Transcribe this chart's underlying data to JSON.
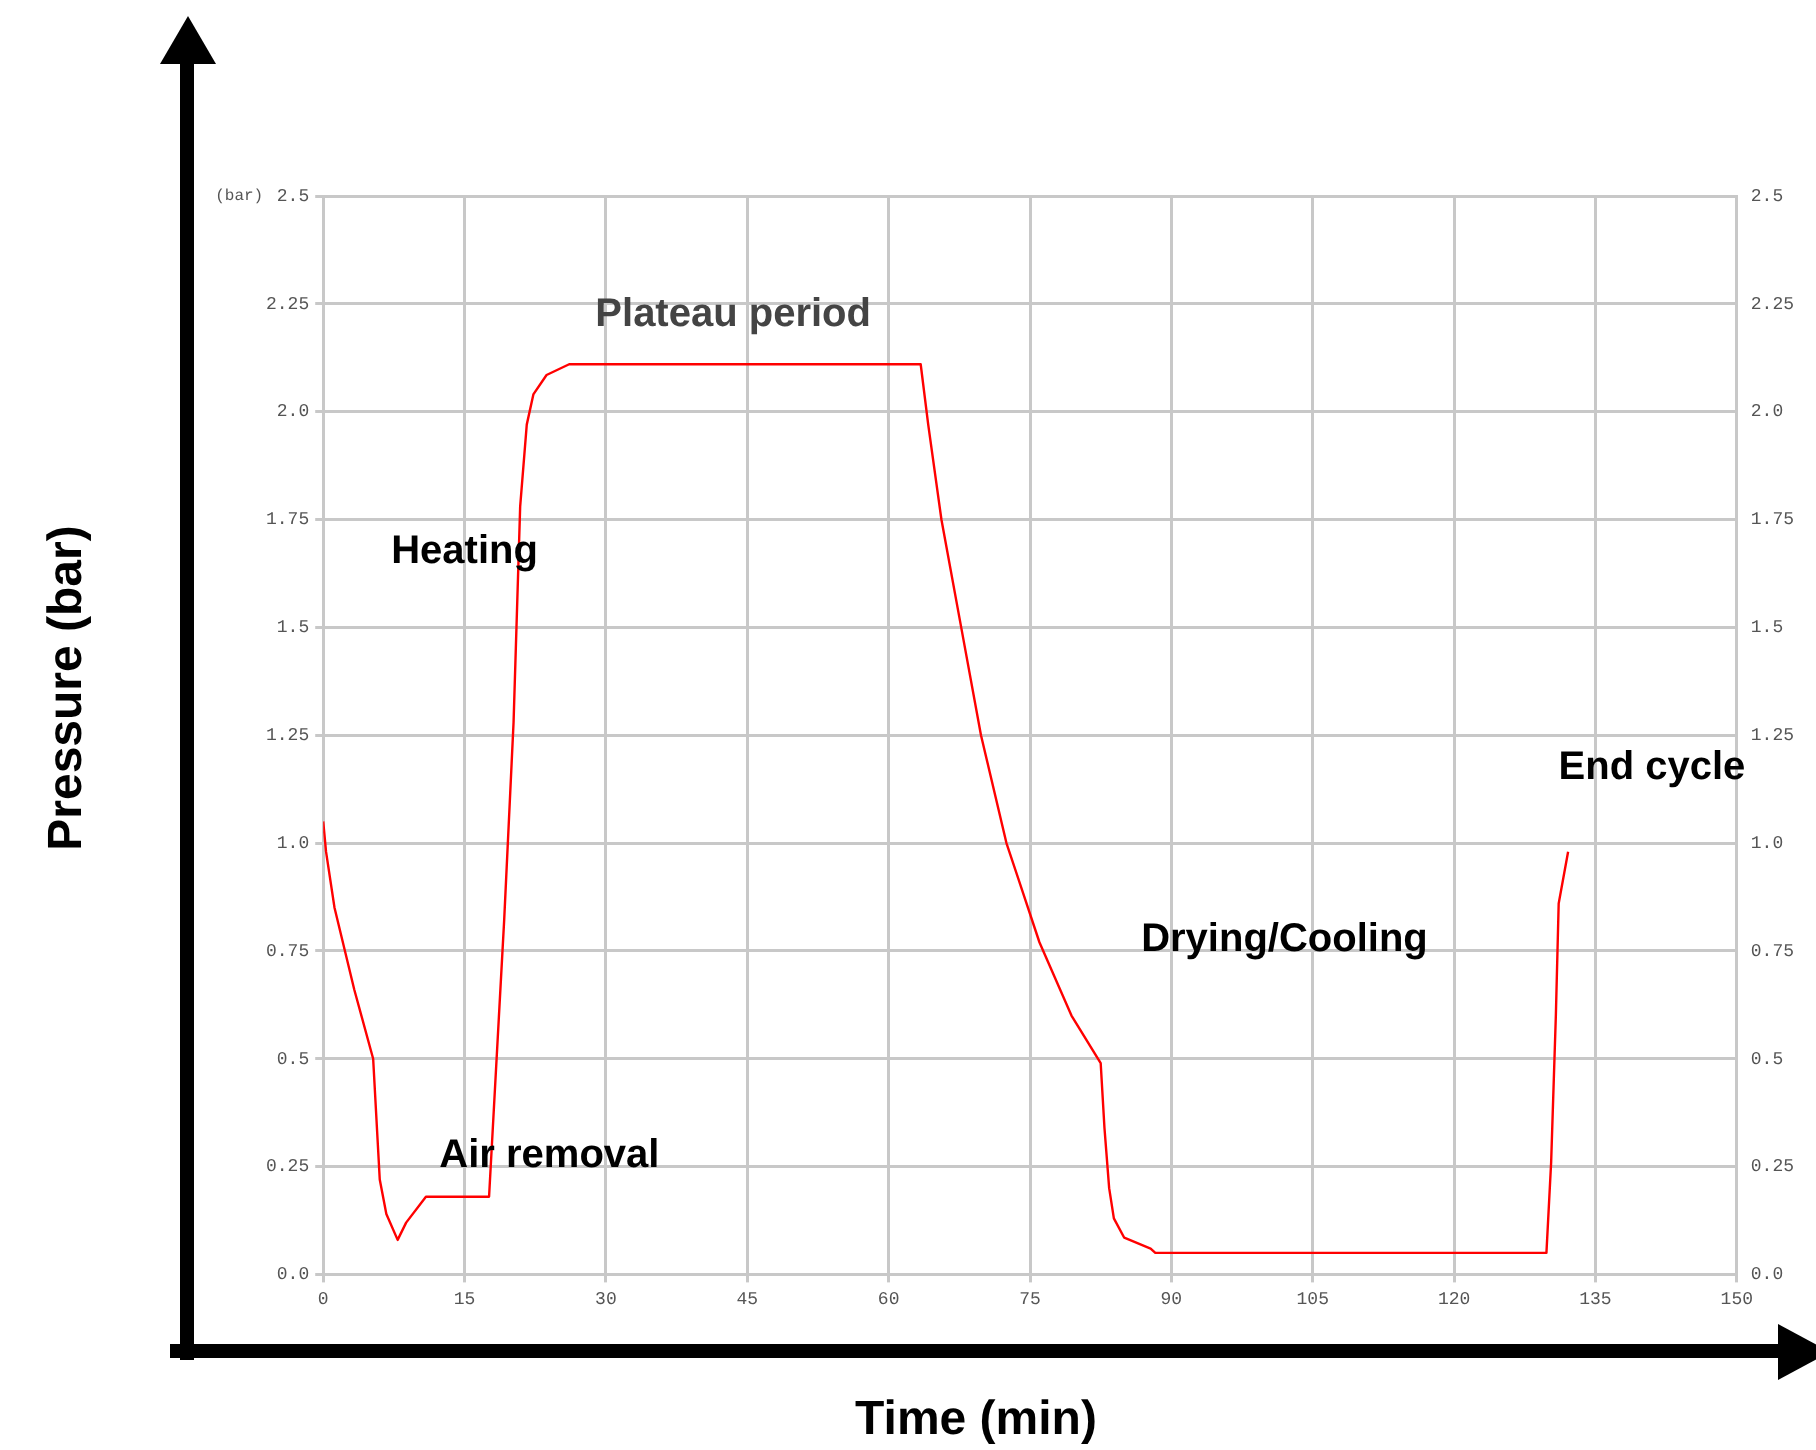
{
  "chart_data": {
    "type": "line",
    "xlabel": "Time (min)",
    "ylabel": "Pressure (bar)",
    "x": [
      0,
      0.3,
      1.2,
      3.3,
      5.3,
      6.0,
      6.7,
      7.9,
      8.8,
      10.9,
      17.6,
      18.1,
      19.2,
      20.2,
      20.9,
      21.6,
      22.3,
      23.7,
      26.1,
      63.4,
      64.2,
      65.6,
      67.7,
      69.8,
      72.5,
      76,
      79.4,
      82.5,
      82.9,
      83.4,
      83.9,
      85,
      87.8,
      88.3,
      129.8,
      130.3,
      130.8,
      131.1,
      132.1
    ],
    "series": [
      {
        "color": "#ff0000",
        "values": [
          1.05,
          0.98,
          0.85,
          0.66,
          0.5,
          0.22,
          0.14,
          0.08,
          0.12,
          0.18,
          0.18,
          0.38,
          0.82,
          1.28,
          1.78,
          1.97,
          2.04,
          2.085,
          2.11,
          2.11,
          1.97,
          1.75,
          1.5,
          1.25,
          1.0,
          0.77,
          0.6,
          0.49,
          0.34,
          0.2,
          0.13,
          0.085,
          0.06,
          0.05,
          0.05,
          0.26,
          0.6,
          0.86,
          0.98
        ]
      }
    ],
    "xlim": [
      0,
      150
    ],
    "xticks": [
      0,
      15,
      30,
      45,
      60,
      75,
      90,
      105,
      120,
      135,
      150
    ],
    "ylim": [
      0,
      2.5
    ],
    "yticks": [
      {
        "value": 0,
        "label": "0.0"
      },
      0.25,
      0.5,
      0.75,
      {
        "value": 1,
        "label": "1.0"
      },
      1.25,
      1.5,
      1.75,
      {
        "value": 2,
        "label": "2.0"
      },
      2.25,
      2.5
    ],
    "y2lim": [
      0,
      2.5
    ],
    "y2ticks": [
      {
        "value": 0,
        "label": "0.0"
      },
      0.25,
      0.5,
      0.75,
      {
        "value": 1,
        "label": "1.0"
      },
      1.25,
      1.5,
      1.75,
      {
        "value": 2,
        "label": "2.0"
      },
      2.25,
      2.5
    ],
    "grid": true,
    "marker": "none",
    "line_style": "solid",
    "legend": false,
    "annotations": [
      "(bar)",
      "Plateau period",
      "Heating",
      "Air removal",
      "Drying/Cooling",
      "End cycle"
    ]
  }
}
